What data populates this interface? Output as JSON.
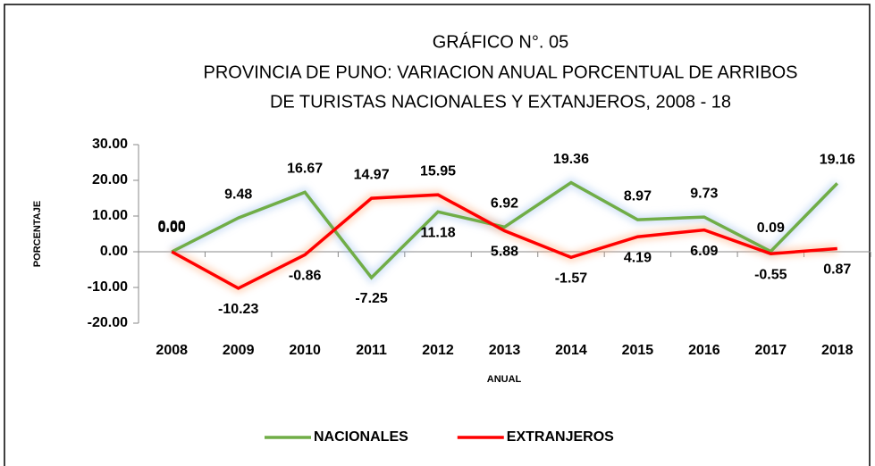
{
  "chart_data": {
    "type": "line",
    "title": [
      "GRÁFICO N°. 05",
      "PROVINCIA DE PUNO: VARIACION ANUAL PORCENTUAL DE ARRIBOS",
      "DE TURISTAS NACIONALES Y EXTANJEROS, 2008 - 18"
    ],
    "x_label": "ANUAL",
    "y_label": "PORCENTAJE",
    "categories": [
      "2008",
      "2009",
      "2010",
      "2011",
      "2012",
      "2013",
      "2014",
      "2015",
      "2016",
      "2017",
      "2018"
    ],
    "series": [
      {
        "name": "NACIONALES",
        "color": "#70ad47",
        "values": [
          0,
          9.48,
          16.67,
          -7.25,
          11.18,
          6.92,
          19.36,
          8.97,
          9.73,
          0.09,
          19.16
        ],
        "value_labels": [
          "0.00",
          "9.48",
          "16.67",
          "-7.25",
          "11.18",
          "6.92",
          "19.36",
          "8.97",
          "9.73",
          "0.09",
          "19.16"
        ]
      },
      {
        "name": "EXTRANJEROS",
        "color": "#ff0000",
        "values": [
          0,
          -10.23,
          -0.86,
          14.97,
          15.95,
          5.88,
          -1.57,
          4.19,
          6.09,
          -0.55,
          0.87
        ],
        "value_labels": [
          "0.00",
          "-10.23",
          "-0.86",
          "14.97",
          "15.95",
          "5.88",
          "-1.57",
          "4.19",
          "6.09",
          "-0.55",
          "0.87"
        ]
      }
    ],
    "ylim": [
      -20,
      30
    ],
    "yticks": [
      {
        "value": -20,
        "label": "-20.00"
      },
      {
        "value": -10,
        "label": "-10.00"
      },
      {
        "value": 0,
        "label": "0.00"
      },
      {
        "value": 10,
        "label": "10.00"
      },
      {
        "value": 20,
        "label": "20.00"
      },
      {
        "value": 30,
        "label": "30.00"
      }
    ],
    "legend": "bottom"
  }
}
